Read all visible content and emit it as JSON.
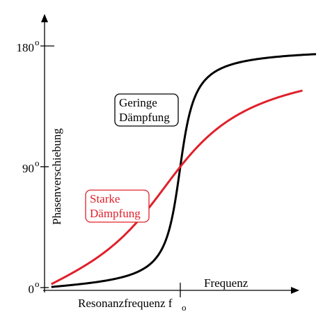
{
  "chart_data": {
    "type": "line",
    "ylabel": "Phasenverschiebung",
    "xlabel": "Frequenz",
    "x_marker": {
      "label": "Resonanzfrequenz f",
      "subscript": "o",
      "x": 1.0
    },
    "xlim": [
      0,
      2.0
    ],
    "ylim": [
      0,
      180
    ],
    "y_ticks": [
      {
        "value": 0,
        "label": "0",
        "sup": "o"
      },
      {
        "value": 90,
        "label": "90",
        "sup": "o"
      },
      {
        "value": 180,
        "label": "180",
        "sup": "o"
      }
    ],
    "grid": false,
    "series": [
      {
        "name": "Geringe Dämpfung",
        "label_lines": [
          "Geringe",
          "Dämpfung"
        ],
        "color": "#000000",
        "damping": 0.08,
        "x_range": [
          0.05,
          2.0
        ]
      },
      {
        "name": "Starke Dämpfung",
        "label_lines": [
          "Starke",
          "Dämpfung"
        ],
        "color": "#e0202a",
        "damping": 0.45,
        "x_range": [
          0.05,
          1.9
        ]
      }
    ]
  }
}
